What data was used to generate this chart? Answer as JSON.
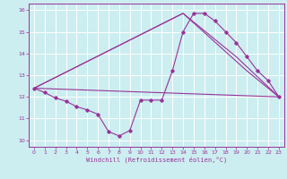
{
  "xlabel": "Windchill (Refroidissement éolien,°C)",
  "ylabel": "",
  "xlim": [
    -0.5,
    23.5
  ],
  "ylim": [
    9.7,
    16.3
  ],
  "yticks": [
    10,
    11,
    12,
    13,
    14,
    15,
    16
  ],
  "xticks": [
    0,
    1,
    2,
    3,
    4,
    5,
    6,
    7,
    8,
    9,
    10,
    11,
    12,
    13,
    14,
    15,
    16,
    17,
    18,
    19,
    20,
    21,
    22,
    23
  ],
  "background_color": "#cceef0",
  "grid_color": "#ffffff",
  "line_color": "#993399",
  "curve1_x": [
    0,
    1,
    2,
    3,
    4,
    5,
    6,
    7,
    8,
    9,
    10,
    11,
    12,
    13,
    14,
    15,
    16,
    17,
    18,
    19,
    20,
    21,
    22,
    23
  ],
  "curve1_y": [
    12.4,
    12.2,
    11.95,
    11.8,
    11.55,
    11.4,
    11.2,
    10.4,
    10.2,
    10.45,
    11.85,
    11.85,
    11.85,
    13.2,
    15.0,
    15.85,
    15.85,
    15.5,
    15.0,
    14.5,
    13.85,
    13.2,
    12.75,
    12.0
  ],
  "curve2_x": [
    0,
    14,
    19,
    23
  ],
  "curve2_y": [
    12.4,
    15.85,
    13.85,
    12.0
  ],
  "curve3_x": [
    0,
    14,
    20,
    23
  ],
  "curve3_y": [
    12.4,
    15.85,
    13.2,
    12.0
  ],
  "curve4_x": [
    0,
    23
  ],
  "curve4_y": [
    12.4,
    12.0
  ]
}
